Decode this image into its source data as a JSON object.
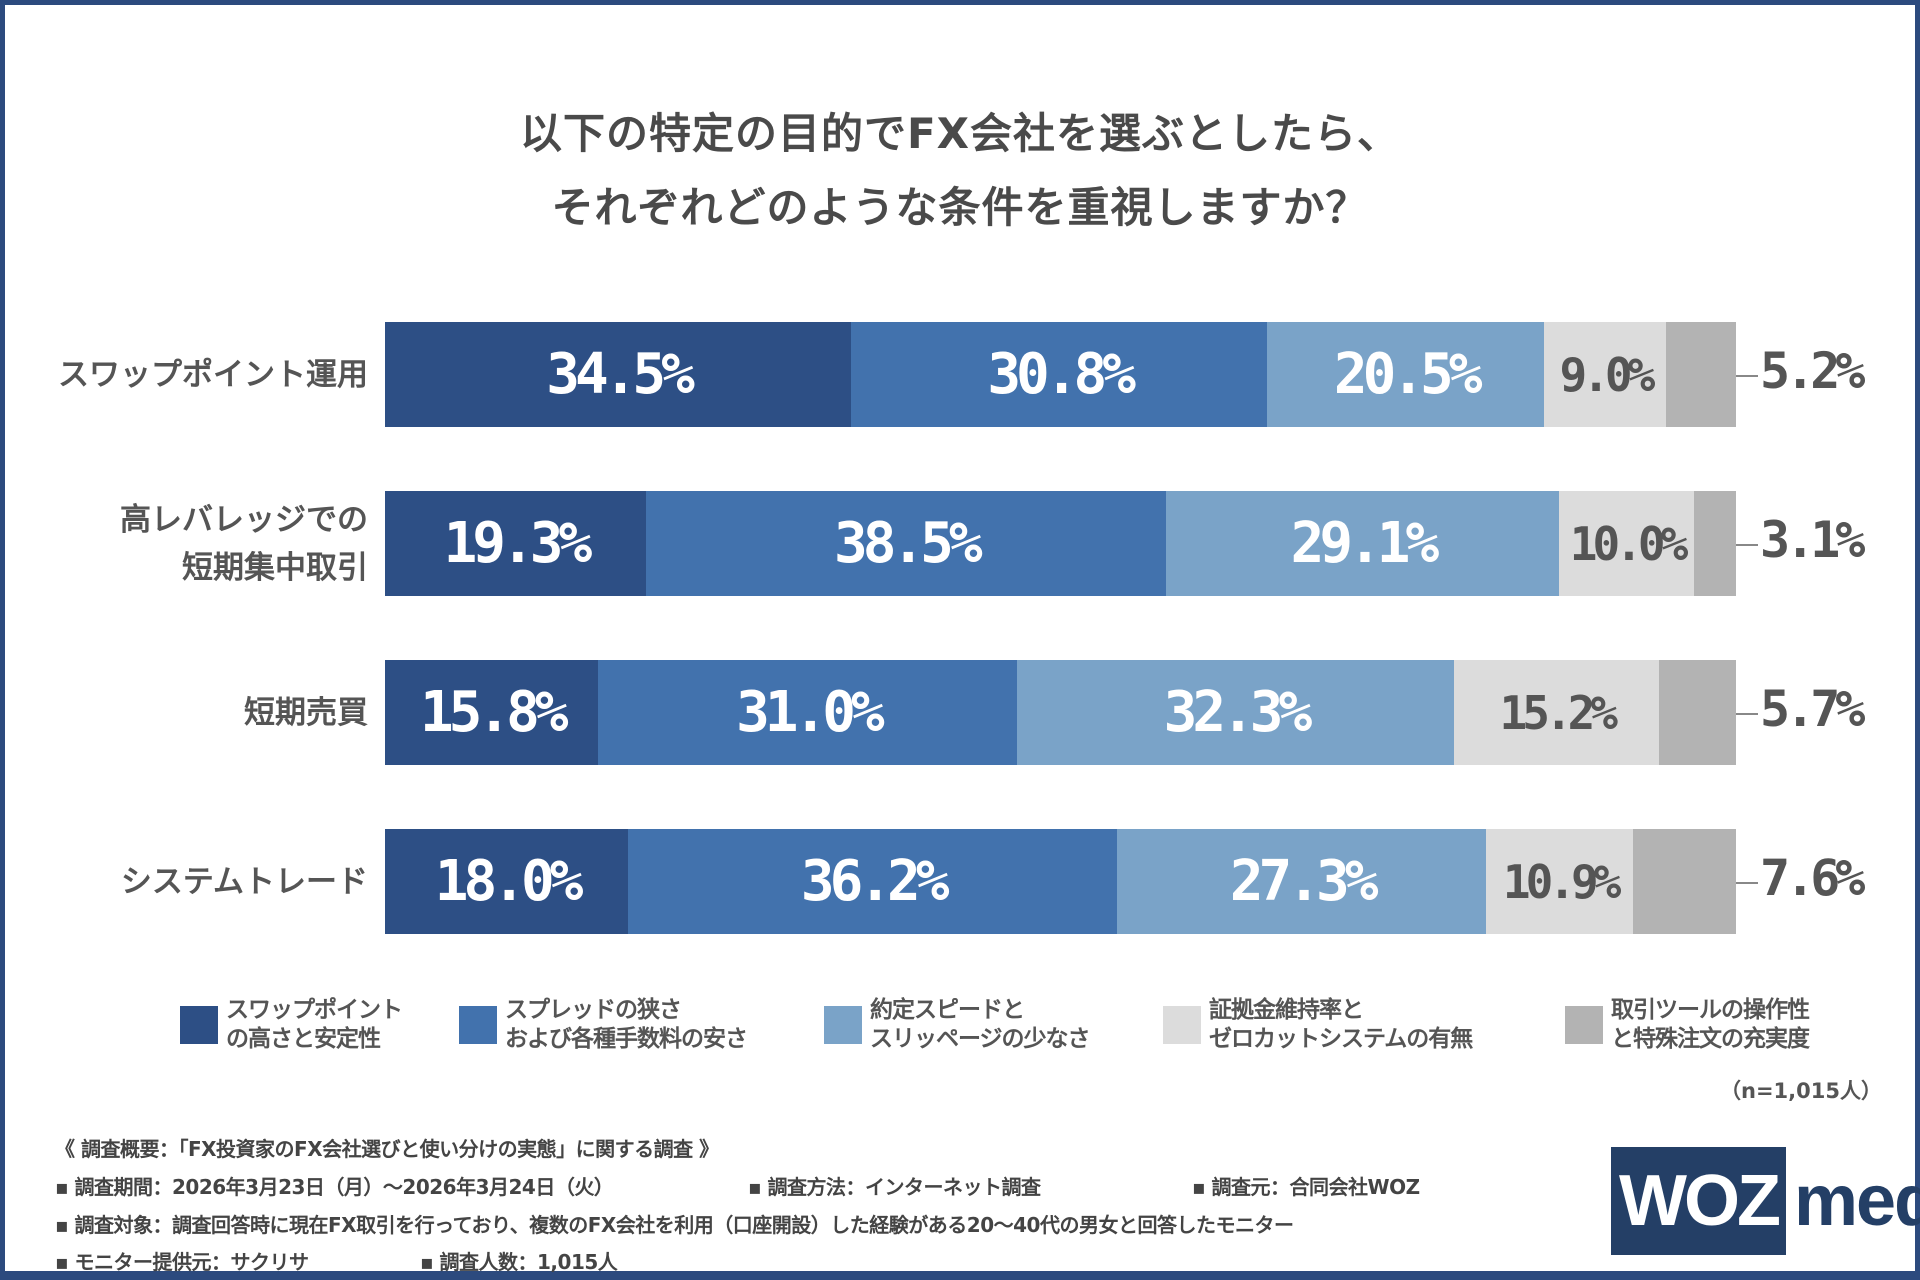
{
  "chart_data": {
    "type": "bar",
    "orientation": "horizontal-stacked-100",
    "title_lines": [
      "以下の特定の目的でFX会社を選ぶとしたら、",
      "それぞれどのような条件を重視しますか？"
    ],
    "categories": [
      {
        "lines": [
          "スワップポイント運用"
        ]
      },
      {
        "lines": [
          "高レバレッジでの",
          "短期集中取引"
        ]
      },
      {
        "lines": [
          "短期売買"
        ]
      },
      {
        "lines": [
          "システムトレード"
        ]
      }
    ],
    "series": [
      {
        "name": "スワップポイント\nの高さと安定性",
        "color": "#2d4f85",
        "values": [
          34.5,
          19.3,
          15.8,
          18.0
        ]
      },
      {
        "name": "スプレッドの狭さ\nおよび各種手数料の安さ",
        "color": "#4272ad",
        "values": [
          30.8,
          38.5,
          31.0,
          36.2
        ]
      },
      {
        "name": "約定スピードと\nスリッページの少なさ",
        "color": "#7aa3c8",
        "values": [
          20.5,
          29.1,
          32.3,
          27.3
        ]
      },
      {
        "name": "証拠金維持率と\nゼロカットシステムの有無",
        "color": "#dcdcdc",
        "values": [
          9.0,
          10.0,
          15.2,
          10.9
        ]
      },
      {
        "name": "取引ツールの操作性\nと特殊注文の充実度",
        "color": "#b3b3b3",
        "values": [
          5.2,
          3.1,
          5.7,
          7.6
        ]
      }
    ],
    "value_format": "0.0%",
    "legend_position": "bottom",
    "grid": false,
    "note": "（n=1,015人）"
  },
  "footer": {
    "heading": "《 調査概要：「FX投資家のFX会社選びと使い分けの実態」に関する調査 》",
    "period": "▪ 調査期間：2026年3月23日（月）～2026年3月24日（火）",
    "method": "▪ 調査方法：インターネット調査",
    "source": "▪ 調査元：合同会社WOZ",
    "target": "▪ 調査対象：調査回答時に現在FX取引を行っており、複数のFX会社を利用（口座開設）した経験がある20～40代の男女と回答したモニター",
    "provider": "▪ モニター提供元：サクリサ",
    "count": "▪ 調査人数：1,015人"
  },
  "logo": {
    "part1": "WOZ",
    "part2": "media"
  }
}
